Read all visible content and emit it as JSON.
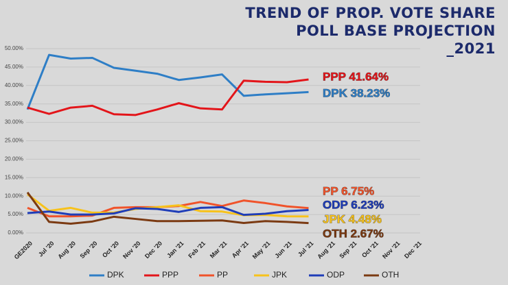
{
  "chart_data": {
    "type": "line",
    "title": [
      "TREND OF PROP. VOTE SHARE",
      "POLL BASE PROJECTION",
      "_2021"
    ],
    "categories": [
      "GE2020",
      "Jul '20",
      "Aug '20",
      "Sep '20",
      "Oct '20",
      "Nov '20",
      "Dec '20",
      "Jan '21",
      "Feb '21",
      "Mar '21",
      "Apr '21",
      "May '21",
      "Jun '21",
      "Jul '21",
      "Aug '21",
      "Sep '21",
      "Oct '21",
      "Nov '21",
      "Dec '21"
    ],
    "series": [
      {
        "name": "DPK",
        "color": "#2e7ec6",
        "values": [
          33.5,
          48.3,
          47.3,
          47.5,
          44.8,
          44.0,
          43.2,
          41.5,
          42.2,
          43.0,
          37.2,
          37.6,
          37.9,
          38.23,
          null,
          null,
          null,
          null,
          null
        ]
      },
      {
        "name": "PPP",
        "color": "#e3151a",
        "values": [
          34.0,
          32.3,
          34.0,
          34.5,
          32.2,
          32.0,
          33.5,
          35.2,
          33.8,
          33.5,
          41.3,
          41.0,
          40.9,
          41.64,
          null,
          null,
          null,
          null,
          null
        ]
      },
      {
        "name": "PP",
        "color": "#f0532a",
        "values": [
          6.8,
          4.5,
          4.5,
          4.7,
          6.8,
          7.0,
          7.0,
          7.3,
          8.4,
          7.3,
          8.8,
          8.1,
          7.2,
          6.75,
          null,
          null,
          null,
          null,
          null
        ]
      },
      {
        "name": "JPK",
        "color": "#f7c21b",
        "values": [
          10.5,
          6.0,
          6.8,
          5.5,
          5.5,
          6.5,
          7.0,
          7.5,
          5.9,
          5.8,
          4.8,
          4.9,
          4.5,
          4.48,
          null,
          null,
          null,
          null,
          null
        ]
      },
      {
        "name": "ODP",
        "color": "#1f3db8",
        "values": [
          5.4,
          5.8,
          5.0,
          5.0,
          5.3,
          6.7,
          6.5,
          5.7,
          6.8,
          7.0,
          4.9,
          5.2,
          5.9,
          6.23,
          null,
          null,
          null,
          null,
          null
        ]
      },
      {
        "name": "OTH",
        "color": "#7b3a12",
        "values": [
          11.0,
          3.0,
          2.5,
          3.1,
          4.4,
          3.8,
          3.2,
          3.2,
          3.3,
          3.4,
          2.7,
          3.2,
          3.0,
          2.67,
          null,
          null,
          null,
          null,
          null
        ]
      }
    ],
    "annotations": [
      {
        "text": "PPP 41.64%",
        "color": "#e3151a"
      },
      {
        "text": "DPK 38.23%",
        "color": "#2e7ec6"
      },
      {
        "text": "PP 6.75%",
        "color": "#f0532a"
      },
      {
        "text": "ODP 6.23%",
        "color": "#1f3db8"
      },
      {
        "text": "JPK 4.48%",
        "color": "#f7c21b"
      },
      {
        "text": "OTH 2.67%",
        "color": "#7b3a12"
      }
    ],
    "ylim": [
      0,
      50
    ],
    "yticks": [
      {
        "value": 0,
        "label": "0.00%"
      },
      {
        "value": 5,
        "label": "5.00%"
      },
      {
        "value": 10,
        "label": "10.00%"
      },
      {
        "value": 15,
        "label": "15.00%"
      },
      {
        "value": 20,
        "label": "20.00%"
      },
      {
        "value": 25,
        "label": "25.00%"
      },
      {
        "value": 30,
        "label": "30.00%"
      },
      {
        "value": 35,
        "label": "35.00%"
      },
      {
        "value": 40,
        "label": "40.00%"
      },
      {
        "value": 45,
        "label": "45.00%"
      },
      {
        "value": 50,
        "label": "50.00%"
      }
    ],
    "grid": true,
    "legend": "bottom"
  }
}
